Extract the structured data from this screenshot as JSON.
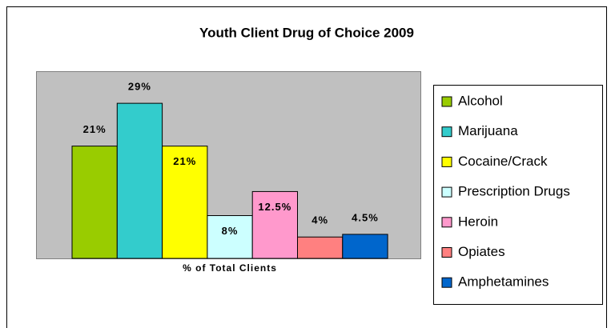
{
  "chart_data": {
    "type": "bar",
    "title": "Youth Client Drug of Choice 2009",
    "categories": [
      "% of Total Clients"
    ],
    "series": [
      {
        "name": "Alcohol",
        "color": "#99cc00",
        "values": [
          21
        ],
        "value_labels": [
          "21%"
        ]
      },
      {
        "name": "Marijuana",
        "color": "#33cccc",
        "values": [
          29
        ],
        "value_labels": [
          "29%"
        ]
      },
      {
        "name": "Cocaine/Crack",
        "color": "#ffff00",
        "values": [
          21
        ],
        "value_labels": [
          "21%"
        ]
      },
      {
        "name": "Prescription Drugs",
        "color": "#ccffff",
        "values": [
          8
        ],
        "value_labels": [
          "8%"
        ]
      },
      {
        "name": "Heroin",
        "color": "#ff99cc",
        "values": [
          12.5
        ],
        "value_labels": [
          "12.5%"
        ]
      },
      {
        "name": "Opiates",
        "color": "#ff8080",
        "values": [
          4
        ],
        "value_labels": [
          "4%"
        ]
      },
      {
        "name": "Amphetamines",
        "color": "#0066cc",
        "values": [
          4.5
        ],
        "value_labels": [
          "4.5%"
        ]
      }
    ],
    "ylim": [
      0,
      35
    ],
    "legend": "right"
  }
}
